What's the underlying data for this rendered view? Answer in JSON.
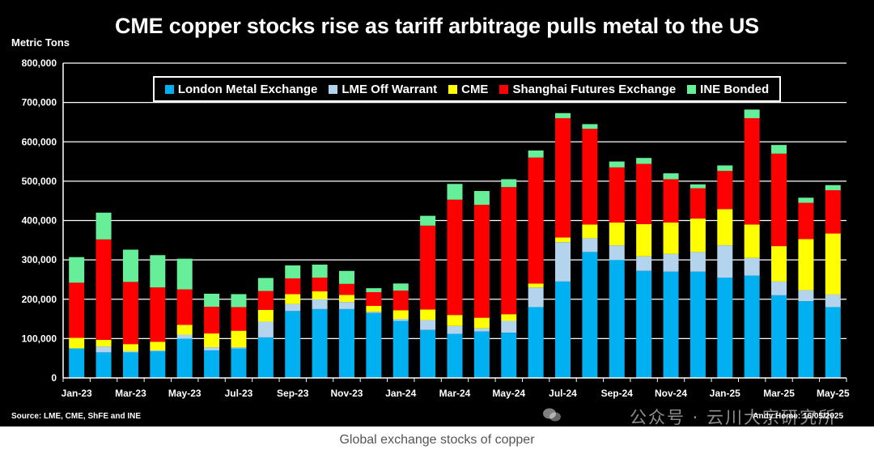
{
  "chart_data": {
    "type": "bar",
    "stacked": true,
    "title": "CME copper stocks rise as tariff arbitrage pulls metal to the US",
    "ylabel": "Metric Tons",
    "ylim": [
      0,
      800000
    ],
    "yticks": [
      "0",
      "100,000",
      "200,000",
      "300,000",
      "400,000",
      "500,000",
      "600,000",
      "700,000",
      "800,000"
    ],
    "xticks": [
      "Jan-23",
      "Mar-23",
      "May-23",
      "Jul-23",
      "Sep-23",
      "Nov-23",
      "Jan-24",
      "Mar-24",
      "May-24",
      "Jul-24",
      "Sep-24",
      "Nov-24",
      "Jan-25",
      "Mar-25",
      "May-25"
    ],
    "categories": [
      "Jan-23",
      "Feb-23",
      "Mar-23",
      "Apr-23",
      "May-23",
      "Jun-23",
      "Jul-23",
      "Aug-23",
      "Sep-23",
      "Oct-23",
      "Nov-23",
      "Dec-23",
      "Jan-24",
      "Feb-24",
      "Mar-24",
      "Apr-24",
      "May-24",
      "Jun-24",
      "Jul-24",
      "Aug-24",
      "Sep-24",
      "Oct-24",
      "Nov-24",
      "Dec-24",
      "Jan-25",
      "Feb-25",
      "Mar-25",
      "Apr-25",
      "May-25"
    ],
    "series": [
      {
        "name": "London Metal Exchange",
        "color": "#00b0f0",
        "values": [
          75000,
          65000,
          65000,
          68000,
          100000,
          70000,
          75000,
          103000,
          170000,
          175000,
          175000,
          165000,
          145000,
          122000,
          112000,
          118000,
          115000,
          180000,
          245000,
          320000,
          300000,
          272000,
          270000,
          270000,
          255000,
          260000,
          210000,
          195000,
          180000
        ]
      },
      {
        "name": "LME Off Warrant",
        "color": "#b4d4ee",
        "values": [
          0,
          15000,
          3000,
          2000,
          10000,
          8000,
          3000,
          40000,
          18000,
          25000,
          18000,
          3000,
          5000,
          25000,
          20000,
          8000,
          30000,
          50000,
          100000,
          35000,
          37000,
          37000,
          45000,
          50000,
          82000,
          45000,
          35000,
          28000,
          32000
        ]
      },
      {
        "name": "CME",
        "color": "#ffff00",
        "values": [
          27000,
          17000,
          18000,
          22000,
          25000,
          35000,
          42000,
          30000,
          25000,
          20000,
          18000,
          15000,
          22000,
          27000,
          28000,
          27000,
          17000,
          10000,
          12000,
          35000,
          58000,
          82000,
          80000,
          85000,
          92000,
          85000,
          90000,
          130000,
          155000
        ]
      },
      {
        "name": "Shanghai Futures Exchange",
        "color": "#ff0000",
        "values": [
          140000,
          255000,
          158000,
          138000,
          90000,
          68000,
          60000,
          48000,
          40000,
          35000,
          28000,
          35000,
          50000,
          213000,
          293000,
          287000,
          323000,
          320000,
          303000,
          243000,
          140000,
          153000,
          110000,
          77000,
          97000,
          270000,
          235000,
          92000,
          110000
        ]
      },
      {
        "name": "INE Bonded",
        "color": "#66ee99",
        "values": [
          65000,
          68000,
          82000,
          82000,
          78000,
          33000,
          33000,
          33000,
          33000,
          33000,
          33000,
          10000,
          18000,
          25000,
          40000,
          35000,
          20000,
          18000,
          13000,
          12000,
          15000,
          15000,
          15000,
          10000,
          14000,
          22000,
          22000,
          13000,
          13000
        ]
      }
    ]
  },
  "source": "Source: LME, CME, ShFE and INE",
  "credit": "Andy Home: 16/05/2025",
  "watermark": "公众号 · 云川大宗研究所",
  "caption": "Global exchange stocks of copper"
}
